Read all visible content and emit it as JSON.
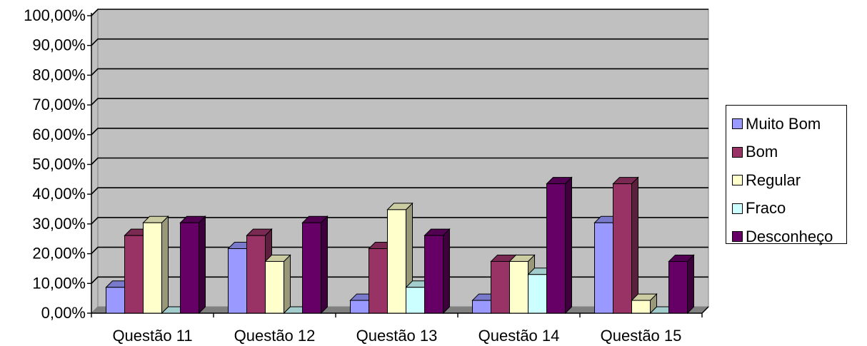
{
  "chart_data": {
    "type": "bar",
    "title": "",
    "xlabel": "",
    "ylabel": "",
    "ylim": [
      0,
      100
    ],
    "yticks": [
      "0,00%",
      "10,00%",
      "20,00%",
      "30,00%",
      "40,00%",
      "50,00%",
      "60,00%",
      "70,00%",
      "80,00%",
      "90,00%",
      "100,00%"
    ],
    "categories": [
      "Questão 11",
      "Questão 12",
      "Questão 13",
      "Questão 14",
      "Questão 15"
    ],
    "series": [
      {
        "name": "Muito Bom",
        "color": "#9999ff",
        "values": [
          8.7,
          21.7,
          4.3,
          4.3,
          30.4
        ]
      },
      {
        "name": "Bom",
        "color": "#993366",
        "values": [
          26.1,
          26.1,
          21.7,
          17.4,
          43.5
        ]
      },
      {
        "name": "Regular",
        "color": "#ffffcc",
        "values": [
          30.4,
          17.4,
          34.8,
          17.4,
          4.3
        ]
      },
      {
        "name": "Fraco",
        "color": "#ccffff",
        "values": [
          0,
          0,
          8.7,
          13.0,
          0
        ]
      },
      {
        "name": "Desconheço",
        "color": "#660066",
        "values": [
          30.4,
          30.4,
          26.1,
          43.5,
          17.4
        ]
      }
    ],
    "grid": true,
    "legend_position": "right",
    "plot_background": "#c0c0c0",
    "style": "3d-column"
  }
}
